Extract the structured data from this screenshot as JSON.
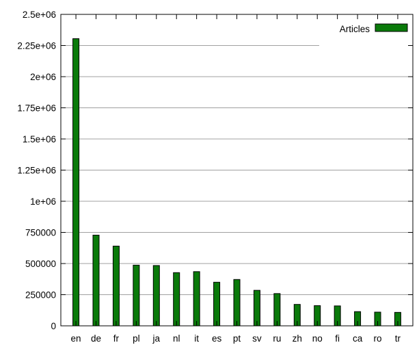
{
  "chart_data": {
    "type": "bar",
    "legend": {
      "label": "Articles",
      "position": "top-right"
    },
    "series_color": "#0a7a0a",
    "categories": [
      "en",
      "de",
      "fr",
      "pl",
      "ja",
      "nl",
      "it",
      "es",
      "pt",
      "sv",
      "ru",
      "zh",
      "no",
      "fi",
      "ca",
      "ro",
      "tr"
    ],
    "values": [
      2305000,
      728000,
      640000,
      487000,
      484000,
      427000,
      435000,
      350000,
      372000,
      285000,
      259000,
      172000,
      162000,
      160000,
      114000,
      110000,
      108000
    ],
    "ylim": [
      0,
      2500000
    ],
    "yticks": [
      {
        "value": 0,
        "label": "0"
      },
      {
        "value": 250000,
        "label": "250000"
      },
      {
        "value": 500000,
        "label": "500000"
      },
      {
        "value": 750000,
        "label": "750000"
      },
      {
        "value": 1000000,
        "label": "1e+06"
      },
      {
        "value": 1250000,
        "label": "1.25e+06"
      },
      {
        "value": 1500000,
        "label": "1.5e+06"
      },
      {
        "value": 1750000,
        "label": "1.75e+06"
      },
      {
        "value": 2000000,
        "label": "2e+06"
      },
      {
        "value": 2250000,
        "label": "2.25e+06"
      },
      {
        "value": 2500000,
        "label": "2.5e+06"
      }
    ],
    "grid": true,
    "title": "",
    "xlabel": "",
    "ylabel": ""
  }
}
